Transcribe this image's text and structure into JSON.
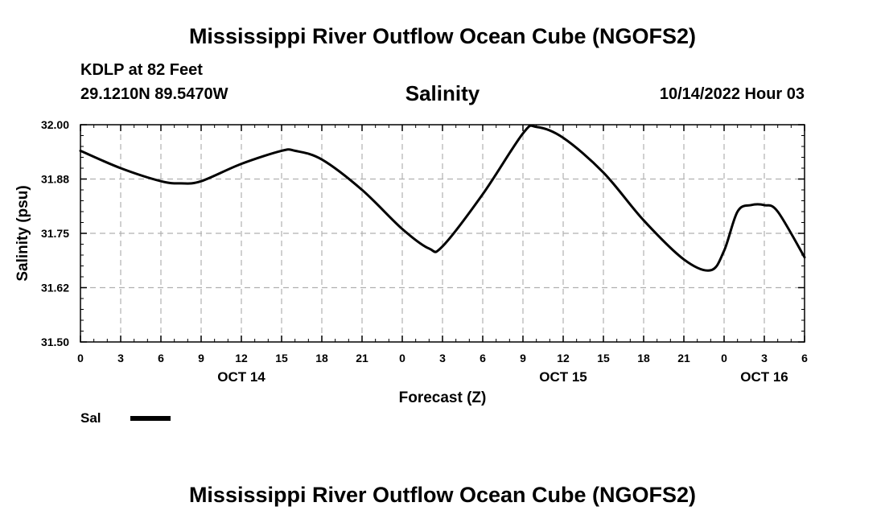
{
  "header": {
    "title": "Mississippi River Outflow Ocean Cube (NGOFS2)",
    "station": "KDLP at 82 Feet",
    "coords": "29.1210N  89.5470W",
    "variable": "Salinity",
    "datetime": "10/14/2022 Hour 03"
  },
  "footer": {
    "title": "Mississippi River Outflow Ocean Cube (NGOFS2)"
  },
  "legend": {
    "label": "Sal",
    "color": "#000000"
  },
  "chart_data": {
    "type": "line",
    "xlabel": "Forecast (Z)",
    "ylabel": "Salinity (psu)",
    "xlim": [
      0,
      54
    ],
    "ylim": [
      31.5,
      32.0
    ],
    "y_ticks": [
      "32.00",
      "31.88",
      "31.75",
      "31.62",
      "31.50"
    ],
    "x_tick_labels": [
      "0",
      "3",
      "6",
      "9",
      "12",
      "15",
      "18",
      "21",
      "0",
      "3",
      "6",
      "9",
      "12",
      "15",
      "18",
      "21",
      "0",
      "3",
      "6"
    ],
    "day_labels": [
      {
        "x": 12,
        "label": "OCT 14"
      },
      {
        "x": 36,
        "label": "OCT 15"
      },
      {
        "x": 51,
        "label": "OCT 16"
      }
    ],
    "grid": true,
    "legend_position": "bottom-left",
    "series": [
      {
        "name": "Sal",
        "color": "#000000",
        "x": [
          0,
          3,
          6,
          7.5,
          9,
          12,
          15,
          16,
          18,
          21,
          24,
          26,
          27,
          30,
          33,
          34,
          36,
          39,
          42,
          45,
          47,
          48,
          49,
          50,
          51,
          52,
          54
        ],
        "y": [
          31.94,
          31.9,
          31.87,
          31.865,
          31.87,
          31.91,
          31.94,
          31.94,
          31.92,
          31.85,
          31.76,
          31.715,
          31.72,
          31.84,
          31.98,
          31.995,
          31.97,
          31.89,
          31.78,
          31.69,
          31.665,
          31.71,
          31.8,
          31.815,
          31.815,
          31.8,
          31.695
        ]
      }
    ]
  }
}
